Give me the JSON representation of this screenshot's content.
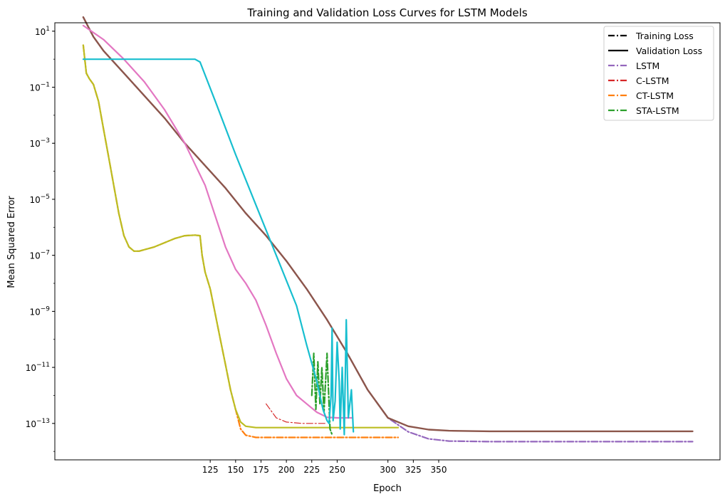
{
  "chart_data": {
    "type": "line",
    "title": "Training and Validation Loss Curves for LSTM Models",
    "xlabel": "Epoch",
    "ylabel": "Mean Squared Error",
    "yscale": "log",
    "xlim": [
      -28,
      627
    ],
    "ylim_exp": [
      -14.3,
      1.3
    ],
    "x_ticks": [
      125,
      150,
      175,
      200,
      225,
      250,
      300,
      325,
      350
    ],
    "y_ticks": [
      {
        "exp": 1,
        "base": "10",
        "sup": "1"
      },
      {
        "exp": -1,
        "base": "10",
        "sup": "−1"
      },
      {
        "exp": -3,
        "base": "10",
        "sup": "−3"
      },
      {
        "exp": -5,
        "base": "10",
        "sup": "−5"
      },
      {
        "exp": -7,
        "base": "10",
        "sup": "−7"
      },
      {
        "exp": -9,
        "base": "10",
        "sup": "−9"
      },
      {
        "exp": -11,
        "base": "10",
        "sup": "−11"
      },
      {
        "exp": -13,
        "base": "10",
        "sup": "−13"
      }
    ],
    "grid": false,
    "legend_position": "top-right",
    "legend": [
      {
        "label": "Training Loss",
        "color": "#000000",
        "dash": "dashdot"
      },
      {
        "label": "Validation Loss",
        "color": "#000000",
        "dash": "solid"
      },
      {
        "label": "LSTM",
        "color": "#9467bd",
        "dash": "dashdot"
      },
      {
        "label": "C-LSTM",
        "color": "#d62728",
        "dash": "dashdot"
      },
      {
        "label": "CT-LSTM",
        "color": "#ff7f0e",
        "dash": "dashdot"
      },
      {
        "label": "STA-LSTM",
        "color": "#2ca02c",
        "dash": "dashdot"
      }
    ],
    "series": [
      {
        "color": "#9467bd",
        "dash": "dashdot",
        "width": 2.2,
        "points": [
          [
            0,
            1.5
          ],
          [
            10,
            0.8
          ],
          [
            20,
            0.3
          ],
          [
            40,
            -0.5
          ],
          [
            60,
            -1.3
          ],
          [
            80,
            -2.1
          ],
          [
            100,
            -3.0
          ],
          [
            120,
            -3.8
          ],
          [
            140,
            -4.6
          ],
          [
            160,
            -5.5
          ],
          [
            180,
            -6.3
          ],
          [
            200,
            -7.2
          ],
          [
            220,
            -8.2
          ],
          [
            240,
            -9.3
          ],
          [
            260,
            -10.5
          ],
          [
            280,
            -11.8
          ],
          [
            300,
            -12.8
          ],
          [
            320,
            -13.3
          ],
          [
            340,
            -13.55
          ],
          [
            360,
            -13.63
          ],
          [
            400,
            -13.65
          ],
          [
            500,
            -13.65
          ],
          [
            600,
            -13.65
          ]
        ]
      },
      {
        "color": "#8c564b",
        "dash": "solid",
        "width": 2.4,
        "points": [
          [
            0,
            1.5
          ],
          [
            10,
            0.8
          ],
          [
            20,
            0.3
          ],
          [
            40,
            -0.5
          ],
          [
            60,
            -1.3
          ],
          [
            80,
            -2.1
          ],
          [
            100,
            -3.0
          ],
          [
            120,
            -3.8
          ],
          [
            140,
            -4.6
          ],
          [
            160,
            -5.5
          ],
          [
            180,
            -6.3
          ],
          [
            200,
            -7.2
          ],
          [
            220,
            -8.2
          ],
          [
            240,
            -9.3
          ],
          [
            260,
            -10.5
          ],
          [
            280,
            -11.8
          ],
          [
            300,
            -12.8
          ],
          [
            320,
            -13.1
          ],
          [
            340,
            -13.22
          ],
          [
            360,
            -13.26
          ],
          [
            400,
            -13.28
          ],
          [
            500,
            -13.28
          ],
          [
            600,
            -13.28
          ]
        ]
      },
      {
        "color": "#d62728",
        "dash": "dashdot",
        "width": 1.2,
        "points": [
          [
            180,
            -12.3
          ],
          [
            190,
            -12.8
          ],
          [
            200,
            -12.95
          ],
          [
            215,
            -13.0
          ],
          [
            240,
            -13.0
          ]
        ]
      },
      {
        "color": "#e377c2",
        "dash": "solid",
        "width": 2.2,
        "points": [
          [
            0,
            1.2
          ],
          [
            20,
            0.7
          ],
          [
            40,
            0.0
          ],
          [
            60,
            -0.8
          ],
          [
            80,
            -1.8
          ],
          [
            100,
            -3.0
          ],
          [
            120,
            -4.5
          ],
          [
            130,
            -5.6
          ],
          [
            140,
            -6.7
          ],
          [
            150,
            -7.5
          ],
          [
            160,
            -8.0
          ],
          [
            170,
            -8.6
          ],
          [
            180,
            -9.5
          ],
          [
            190,
            -10.5
          ],
          [
            200,
            -11.4
          ],
          [
            210,
            -12.0
          ],
          [
            220,
            -12.3
          ],
          [
            230,
            -12.6
          ],
          [
            240,
            -12.78
          ],
          [
            250,
            -12.8
          ],
          [
            265,
            -12.8
          ]
        ]
      },
      {
        "color": "#ff7f0e",
        "dash": "dashdot",
        "width": 2.2,
        "points": [
          [
            0,
            0.5
          ],
          [
            3,
            -0.5
          ],
          [
            6,
            -0.7
          ],
          [
            10,
            -0.9
          ],
          [
            15,
            -1.5
          ],
          [
            20,
            -2.5
          ],
          [
            25,
            -3.5
          ],
          [
            30,
            -4.5
          ],
          [
            35,
            -5.5
          ],
          [
            40,
            -6.3
          ],
          [
            45,
            -6.7
          ],
          [
            50,
            -6.85
          ],
          [
            55,
            -6.85
          ],
          [
            60,
            -6.8
          ],
          [
            70,
            -6.7
          ],
          [
            80,
            -6.55
          ],
          [
            90,
            -6.4
          ],
          [
            100,
            -6.3
          ],
          [
            110,
            -6.28
          ],
          [
            115,
            -6.3
          ],
          [
            117,
            -7.0
          ],
          [
            120,
            -7.6
          ],
          [
            125,
            -8.2
          ],
          [
            130,
            -9.1
          ],
          [
            135,
            -10.0
          ],
          [
            140,
            -10.9
          ],
          [
            145,
            -11.8
          ],
          [
            150,
            -12.5
          ],
          [
            155,
            -13.2
          ],
          [
            160,
            -13.42
          ],
          [
            170,
            -13.5
          ],
          [
            200,
            -13.5
          ],
          [
            300,
            -13.5
          ],
          [
            310,
            -13.5
          ]
        ]
      },
      {
        "color": "#bcbd22",
        "dash": "solid",
        "width": 2.2,
        "points": [
          [
            0,
            0.5
          ],
          [
            3,
            -0.5
          ],
          [
            6,
            -0.7
          ],
          [
            10,
            -0.9
          ],
          [
            15,
            -1.5
          ],
          [
            20,
            -2.5
          ],
          [
            25,
            -3.5
          ],
          [
            30,
            -4.5
          ],
          [
            35,
            -5.5
          ],
          [
            40,
            -6.3
          ],
          [
            45,
            -6.7
          ],
          [
            50,
            -6.85
          ],
          [
            55,
            -6.85
          ],
          [
            60,
            -6.8
          ],
          [
            70,
            -6.7
          ],
          [
            80,
            -6.55
          ],
          [
            90,
            -6.4
          ],
          [
            100,
            -6.3
          ],
          [
            110,
            -6.28
          ],
          [
            115,
            -6.3
          ],
          [
            117,
            -7.0
          ],
          [
            120,
            -7.6
          ],
          [
            125,
            -8.2
          ],
          [
            130,
            -9.1
          ],
          [
            135,
            -10.0
          ],
          [
            140,
            -10.9
          ],
          [
            145,
            -11.8
          ],
          [
            150,
            -12.5
          ],
          [
            155,
            -12.95
          ],
          [
            160,
            -13.1
          ],
          [
            170,
            -13.15
          ],
          [
            200,
            -13.15
          ],
          [
            300,
            -13.15
          ],
          [
            310,
            -13.15
          ]
        ]
      },
      {
        "color": "#2ca02c",
        "dash": "dashdot",
        "width": 2.2,
        "points": [
          [
            225,
            -12.0
          ],
          [
            227,
            -10.5
          ],
          [
            229,
            -12.5
          ],
          [
            231,
            -10.8
          ],
          [
            233,
            -12.3
          ],
          [
            235,
            -11.0
          ],
          [
            237,
            -12.6
          ],
          [
            240,
            -10.5
          ],
          [
            243,
            -13.2
          ],
          [
            245,
            -13.4
          ]
        ]
      },
      {
        "color": "#17becf",
        "dash": "solid",
        "width": 2.2,
        "points": [
          [
            0,
            0.0
          ],
          [
            60,
            0.0
          ],
          [
            100,
            0.0
          ],
          [
            110,
            0.0
          ],
          [
            115,
            -0.1
          ],
          [
            130,
            -1.5
          ],
          [
            150,
            -3.4
          ],
          [
            170,
            -5.2
          ],
          [
            190,
            -7.0
          ],
          [
            210,
            -8.8
          ],
          [
            220,
            -10.2
          ],
          [
            230,
            -11.5
          ],
          [
            236,
            -12.5
          ],
          [
            240,
            -12.9
          ],
          [
            242,
            -13.0
          ],
          [
            244,
            -12.0
          ],
          [
            245,
            -9.6
          ],
          [
            246,
            -12.9
          ],
          [
            248,
            -12.2
          ],
          [
            250,
            -10.1
          ],
          [
            252,
            -11.5
          ],
          [
            253,
            -13.2
          ],
          [
            255,
            -11.0
          ],
          [
            257,
            -13.4
          ],
          [
            259,
            -9.3
          ],
          [
            261,
            -12.8
          ],
          [
            264,
            -11.8
          ],
          [
            266,
            -13.3
          ]
        ]
      }
    ]
  }
}
